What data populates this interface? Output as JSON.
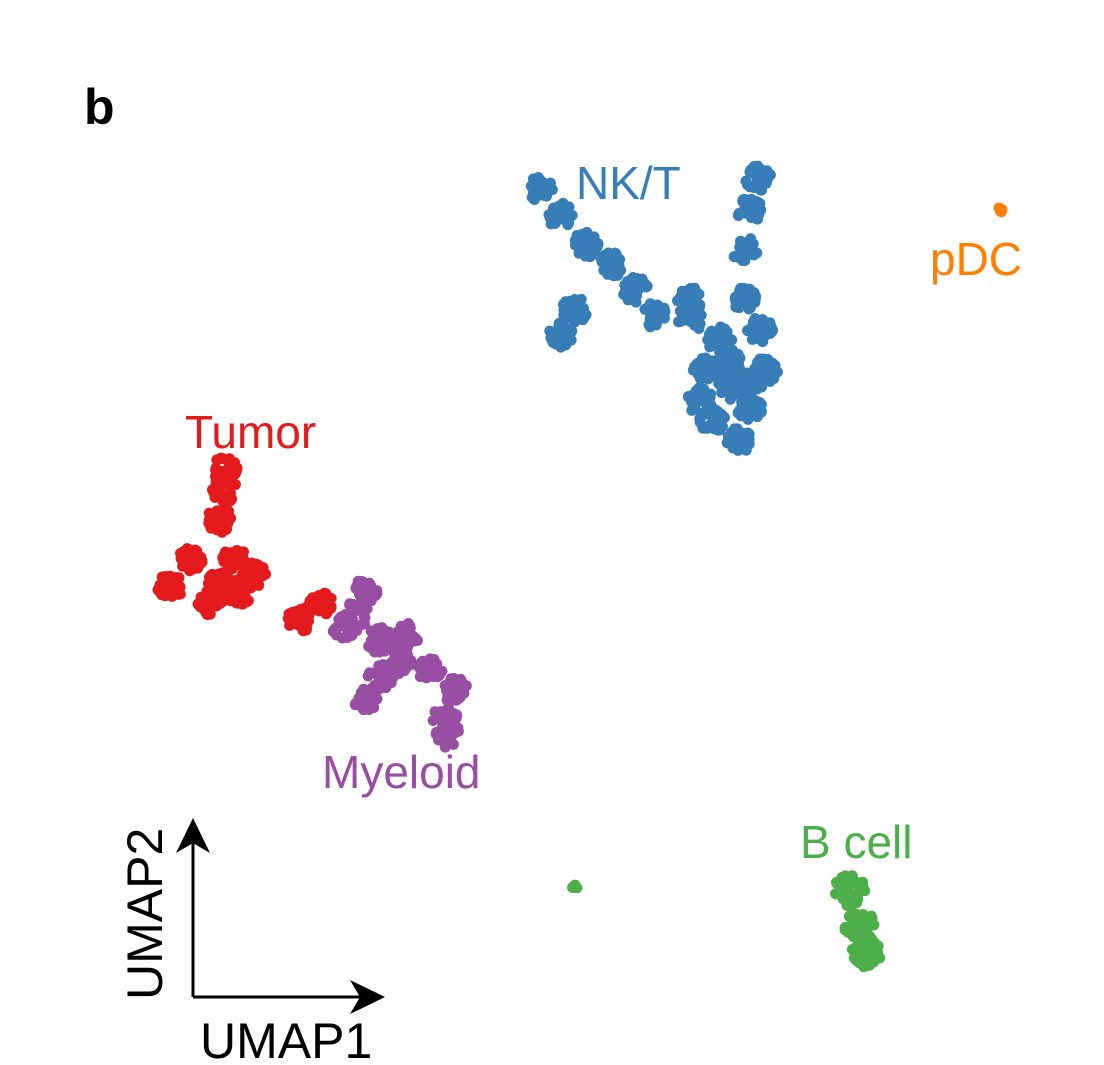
{
  "panel_label": "b",
  "chart_data": {
    "type": "scatter",
    "xlabel": "UMAP1",
    "ylabel": "UMAP2",
    "xlim": [
      0,
      100
    ],
    "ylim": [
      0,
      100
    ],
    "grid": false,
    "legend": "none (cluster labels placed next to clusters)",
    "clusters": [
      {
        "name": "NK/T",
        "color": "#377eb8",
        "points": [
          [
            48.9,
            82.2
          ],
          [
            50.7,
            79.8
          ],
          [
            53,
            77
          ],
          [
            55.3,
            75.1
          ],
          [
            57.5,
            72.8
          ],
          [
            59.3,
            70.4
          ],
          [
            62.5,
            70
          ],
          [
            65.2,
            68.1
          ],
          [
            63.9,
            65.3
          ],
          [
            66.1,
            63.4
          ],
          [
            67.9,
            61.5
          ],
          [
            67,
            58.7
          ],
          [
            63.4,
            62.4
          ],
          [
            69.3,
            65.3
          ],
          [
            67.5,
            71.8
          ],
          [
            67.5,
            76.5
          ],
          [
            67.9,
            80.3
          ],
          [
            68.7,
            83.3
          ],
          [
            50.7,
            68.5
          ],
          [
            52.1,
            70.9
          ],
          [
            62.5,
            71.8
          ],
          [
            68.8,
            69
          ],
          [
            66,
            66
          ],
          [
            68,
            64
          ],
          [
            64.5,
            60.5
          ]
        ]
      },
      {
        "name": "pDC",
        "color": "#ff7f00",
        "points": [
          [
            90.6,
            80.3
          ]
        ]
      },
      {
        "name": "Tumor",
        "color": "#e41a1c",
        "points": [
          [
            20.4,
            55.9
          ],
          [
            20.4,
            54
          ],
          [
            19.9,
            51.2
          ],
          [
            17.2,
            47.3
          ],
          [
            15.4,
            44.9
          ],
          [
            19,
            43.4
          ],
          [
            21.7,
            44.4
          ],
          [
            23.1,
            46
          ],
          [
            21.3,
            47.4
          ],
          [
            27.2,
            41.8
          ],
          [
            29,
            43.2
          ],
          [
            20,
            45.5
          ]
        ]
      },
      {
        "name": "Myeloid",
        "color": "#984ea3",
        "points": [
          [
            33.1,
            44.6
          ],
          [
            32.2,
            42.3
          ],
          [
            34.4,
            39.9
          ],
          [
            36.2,
            37.9
          ],
          [
            37.1,
            40.3
          ],
          [
            38.9,
            37.1
          ],
          [
            41.2,
            35.2
          ],
          [
            40.3,
            32.4
          ],
          [
            40.6,
            31
          ],
          [
            33.1,
            34.5
          ],
          [
            31.3,
            41.1
          ],
          [
            34.5,
            36.5
          ]
        ]
      },
      {
        "name": "B cell",
        "color": "#4daf4a",
        "points": [
          [
            77,
            16.4
          ],
          [
            77.9,
            13.1
          ],
          [
            78.4,
            10.7
          ],
          [
            52.1,
            16.7
          ]
        ]
      }
    ]
  }
}
